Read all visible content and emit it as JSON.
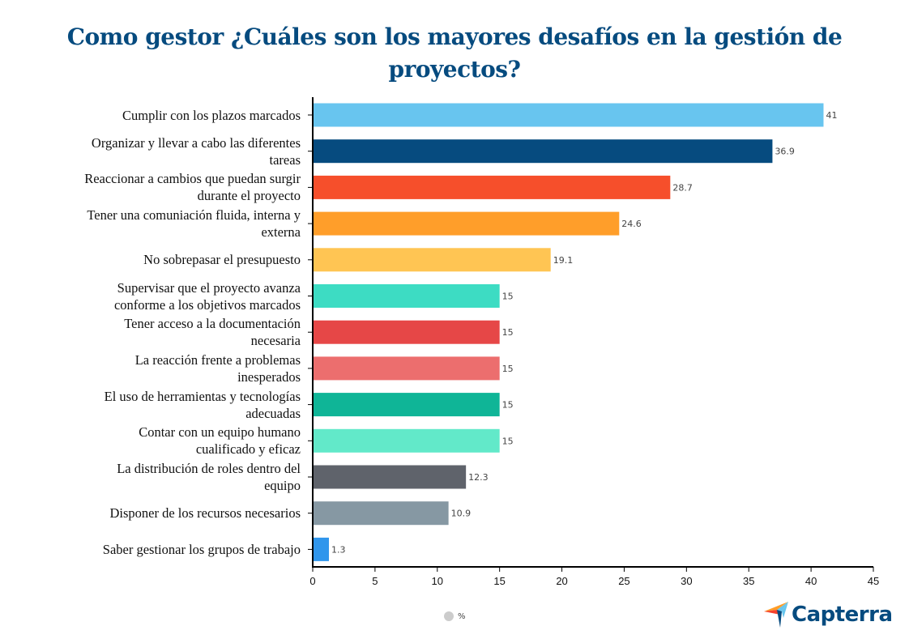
{
  "chart_data": {
    "type": "bar",
    "orientation": "horizontal",
    "title": "Como gestor ¿Cuáles son los mayores desafíos en la gestión de proyectos?",
    "categories": [
      "Cumplir con los plazos marcados",
      "Organizar y llevar a cabo las diferentes tareas",
      "Reaccionar a cambios que puedan surgir durante el proyecto",
      "Tener una comuniación fluida, interna y externa",
      "No sobrepasar el presupuesto",
      "Supervisar que el proyecto avanza conforme a los objetivos marcados",
      "Tener acceso a la documentación necesaria",
      "La reacción frente a problemas inesperados",
      "El uso de herramientas y tecnologías adecuadas",
      "Contar con un equipo humano cualificado y eficaz",
      "La distribución de roles dentro del equipo",
      "Disponer de los recursos necesarios",
      "Saber gestionar los grupos de trabajo"
    ],
    "category_lines": [
      [
        "Cumplir con los plazos marcados"
      ],
      [
        "Organizar y llevar a cabo las diferentes",
        "tareas"
      ],
      [
        "Reaccionar a cambios que puedan surgir",
        "durante el proyecto"
      ],
      [
        "Tener una comuniación fluida, interna y",
        "externa"
      ],
      [
        "No sobrepasar el presupuesto"
      ],
      [
        "Supervisar que el proyecto avanza",
        "conforme a los objetivos marcados"
      ],
      [
        "Tener acceso a la documentación",
        "necesaria"
      ],
      [
        "La reacción frente a problemas",
        "inesperados"
      ],
      [
        "El uso de herramientas y tecnologías",
        "adecuadas"
      ],
      [
        "Contar con un equipo humano",
        "cualificado y eficaz"
      ],
      [
        "La distribución de roles dentro del",
        "equipo"
      ],
      [
        "Disponer de los recursos necesarios"
      ],
      [
        "Saber gestionar los grupos de trabajo"
      ]
    ],
    "series": [
      {
        "name": "%",
        "values": [
          41,
          36.9,
          28.7,
          24.6,
          19.1,
          15,
          15,
          15,
          15,
          15,
          12.3,
          10.9,
          1.3
        ]
      }
    ],
    "colors": [
      "#68c5ef",
      "#064b7f",
      "#f64f2b",
      "#ff9e2a",
      "#ffc553",
      "#3ddcc3",
      "#e64747",
      "#ec6e6e",
      "#0fb597",
      "#62e9c9",
      "#5f636b",
      "#8698a3",
      "#3096ec"
    ],
    "xlim": [
      0,
      45
    ],
    "xticks": [
      0,
      5,
      10,
      15,
      20,
      25,
      30,
      35,
      40,
      45
    ],
    "grid": false,
    "legend": "bottom",
    "legend_color": "#cccccc"
  },
  "brand": {
    "name": "Capterra"
  }
}
